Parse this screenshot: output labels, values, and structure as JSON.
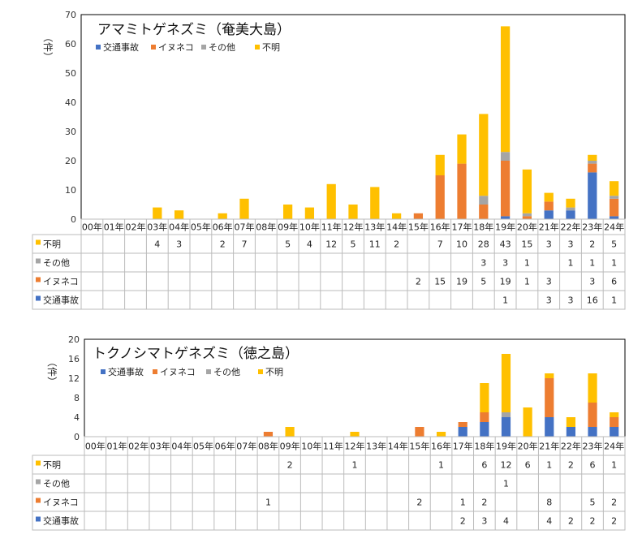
{
  "colors": {
    "traffic": "#4472C4",
    "dogcat": "#ED7D31",
    "other": "#A5A5A5",
    "unknown": "#FFC000"
  },
  "chart_data": [
    {
      "type": "bar",
      "stacked": true,
      "title": "アマミトゲネズミ（奄美大島）",
      "ylabel": "（件）",
      "ylim": [
        0,
        70
      ],
      "yticks": [
        0,
        10,
        20,
        30,
        40,
        50,
        60,
        70
      ],
      "categories": [
        "00年",
        "01年",
        "02年",
        "03年",
        "04年",
        "05年",
        "06年",
        "07年",
        "08年",
        "09年",
        "10年",
        "11年",
        "12年",
        "13年",
        "14年",
        "15年",
        "16年",
        "17年",
        "18年",
        "19年",
        "20年",
        "21年",
        "22年",
        "23年",
        "24年"
      ],
      "series": [
        {
          "name": "交通事故",
          "color_key": "traffic",
          "values": [
            null,
            null,
            null,
            null,
            null,
            null,
            null,
            null,
            null,
            null,
            null,
            null,
            null,
            null,
            null,
            null,
            null,
            null,
            null,
            1,
            null,
            3,
            3,
            16,
            1
          ]
        },
        {
          "name": "イヌネコ",
          "color_key": "dogcat",
          "values": [
            null,
            null,
            null,
            null,
            null,
            null,
            null,
            null,
            null,
            null,
            null,
            null,
            null,
            null,
            null,
            2,
            15,
            19,
            5,
            19,
            1,
            3,
            null,
            3,
            6
          ]
        },
        {
          "name": "その他",
          "color_key": "other",
          "values": [
            null,
            null,
            null,
            null,
            null,
            null,
            null,
            null,
            null,
            null,
            null,
            null,
            null,
            null,
            null,
            null,
            null,
            null,
            3,
            3,
            1,
            null,
            1,
            1,
            1
          ]
        },
        {
          "name": "不明",
          "color_key": "unknown",
          "values": [
            null,
            null,
            null,
            4,
            3,
            null,
            2,
            7,
            null,
            5,
            4,
            12,
            5,
            11,
            2,
            null,
            7,
            10,
            28,
            43,
            15,
            3,
            3,
            2,
            5
          ]
        }
      ],
      "legend_position": "top-left",
      "grid": false
    },
    {
      "type": "bar",
      "stacked": true,
      "title": "トクノシマトゲネズミ（徳之島）",
      "ylabel": "（件）",
      "ylim": [
        0,
        20
      ],
      "yticks": [
        0,
        4,
        8,
        12,
        16,
        20
      ],
      "categories": [
        "00年",
        "01年",
        "02年",
        "03年",
        "04年",
        "05年",
        "06年",
        "07年",
        "08年",
        "09年",
        "10年",
        "11年",
        "12年",
        "13年",
        "14年",
        "15年",
        "16年",
        "17年",
        "18年",
        "19年",
        "20年",
        "21年",
        "22年",
        "23年",
        "24年"
      ],
      "series": [
        {
          "name": "交通事故",
          "color_key": "traffic",
          "values": [
            null,
            null,
            null,
            null,
            null,
            null,
            null,
            null,
            null,
            null,
            null,
            null,
            null,
            null,
            null,
            null,
            null,
            2,
            3,
            4,
            null,
            4,
            2,
            2,
            2
          ]
        },
        {
          "name": "イヌネコ",
          "color_key": "dogcat",
          "values": [
            null,
            null,
            null,
            null,
            null,
            null,
            null,
            null,
            1,
            null,
            null,
            null,
            null,
            null,
            null,
            2,
            null,
            1,
            2,
            null,
            null,
            8,
            null,
            5,
            2
          ]
        },
        {
          "name": "その他",
          "color_key": "other",
          "values": [
            null,
            null,
            null,
            null,
            null,
            null,
            null,
            null,
            null,
            null,
            null,
            null,
            null,
            null,
            null,
            null,
            null,
            null,
            null,
            1,
            null,
            null,
            null,
            null,
            null
          ]
        },
        {
          "name": "不明",
          "color_key": "unknown",
          "values": [
            null,
            null,
            null,
            null,
            null,
            null,
            null,
            null,
            null,
            2,
            null,
            null,
            1,
            null,
            null,
            null,
            1,
            null,
            6,
            12,
            6,
            1,
            2,
            6,
            1
          ]
        }
      ],
      "legend_position": "top-left",
      "grid": false
    }
  ]
}
